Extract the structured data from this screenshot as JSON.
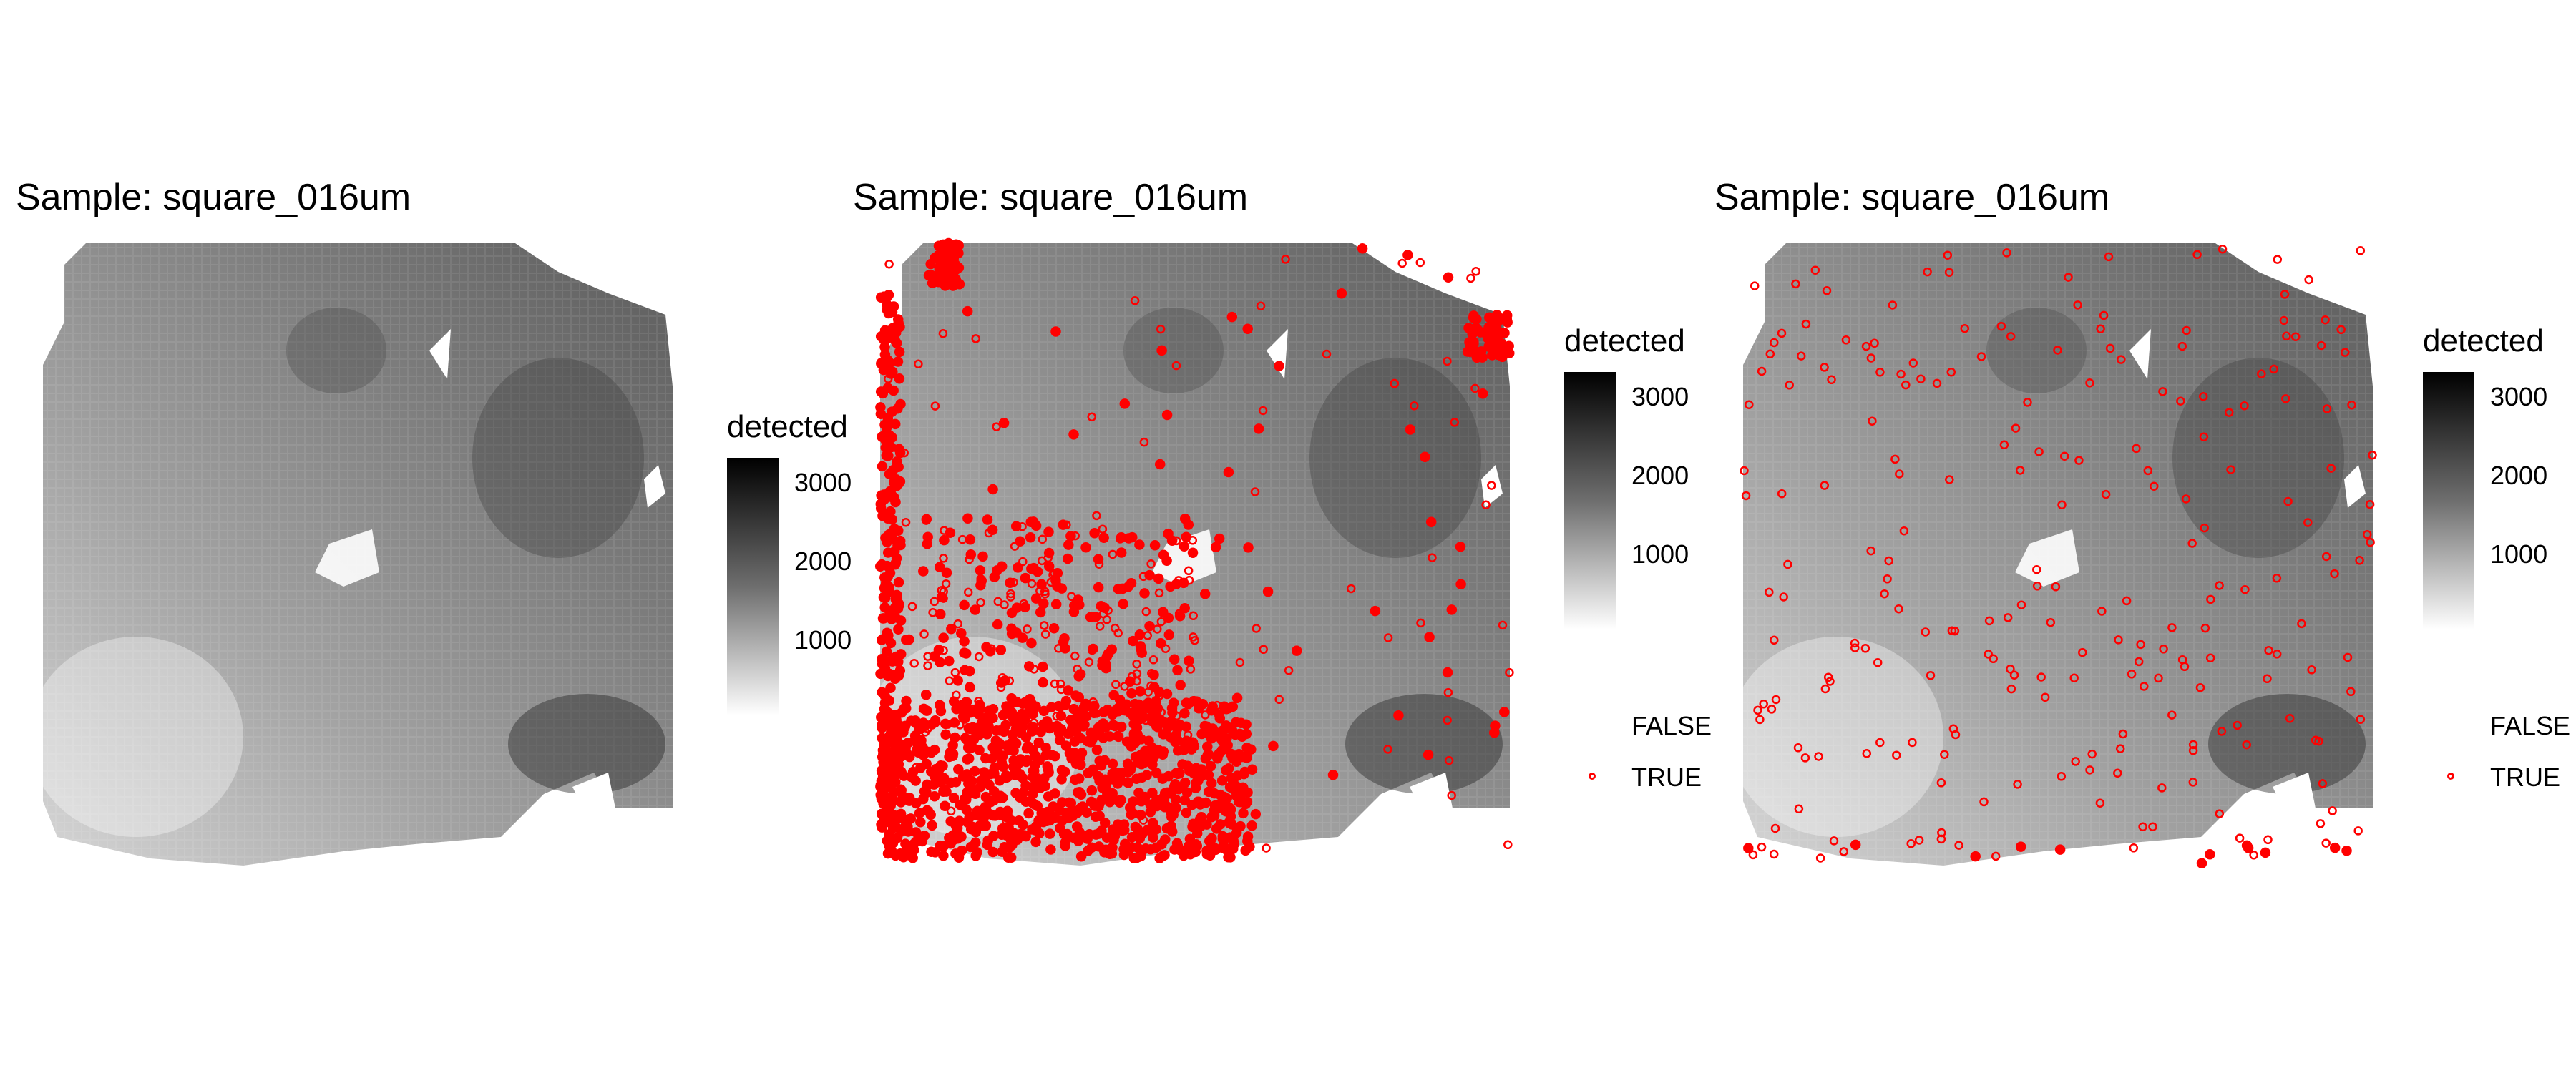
{
  "chart_data": [
    {
      "type": "scatter",
      "title": "Sample: square_016um",
      "fill_legend": {
        "title": "detected",
        "ticks": [
          1000,
          2000,
          3000
        ],
        "range": [
          0,
          3300
        ],
        "low_color": "#ffffff",
        "high_color": "#000000"
      },
      "overlay_legend": null,
      "highlight_points": []
    },
    {
      "type": "scatter",
      "title": "Sample: square_016um",
      "fill_legend": {
        "title": "detected",
        "ticks": [
          1000,
          2000,
          3000
        ],
        "range": [
          0,
          3300
        ],
        "low_color": "#ffffff",
        "high_color": "#000000"
      },
      "overlay_legend": {
        "entries": [
          "FALSE",
          "TRUE"
        ],
        "true_color": "#ff0000"
      },
      "highlight_points": "dense-outliers"
    },
    {
      "type": "scatter",
      "title": "Sample: square_016um",
      "fill_legend": {
        "title": "detected",
        "ticks": [
          1000,
          2000,
          3000
        ],
        "range": [
          0,
          3300
        ],
        "low_color": "#ffffff",
        "high_color": "#000000"
      },
      "overlay_legend": {
        "entries": [
          "FALSE",
          "TRUE"
        ],
        "true_color": "#ff0000"
      },
      "highlight_points": "sparse-outliers"
    }
  ]
}
